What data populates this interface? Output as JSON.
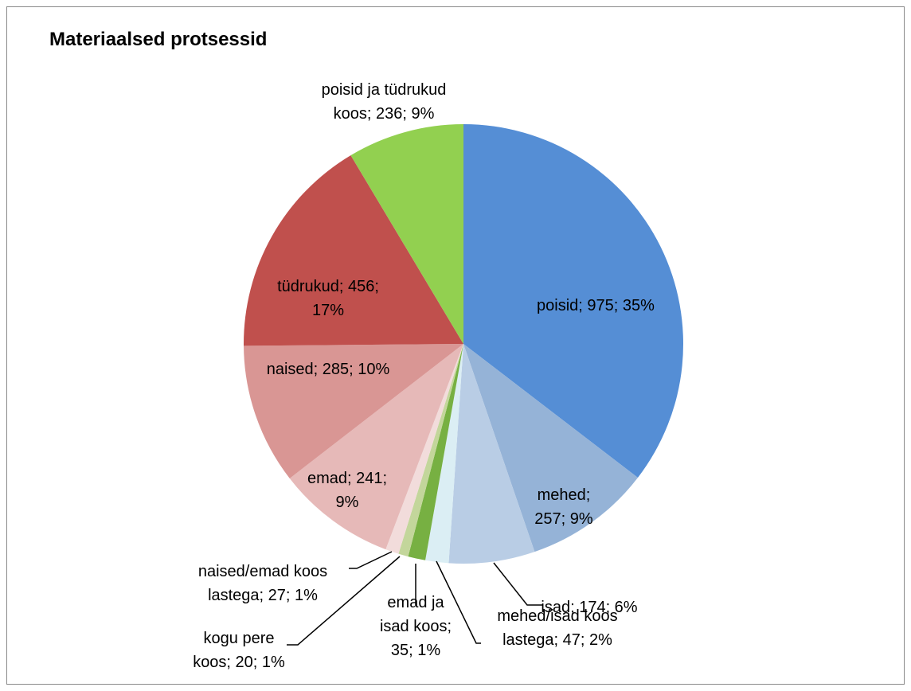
{
  "chart_data": {
    "type": "pie",
    "title": "Materiaalsed protsessid",
    "slices": [
      {
        "name": "poisid",
        "value": 975,
        "percent": 35,
        "color": "#558ed5",
        "label_lines": [
          "poisid; 975; 35%"
        ]
      },
      {
        "name": "mehed",
        "value": 257,
        "percent": 9,
        "color": "#95b3d7",
        "label_lines": [
          "mehed;",
          "257; 9%"
        ]
      },
      {
        "name": "isad",
        "value": 174,
        "percent": 6,
        "color": "#b9cde5",
        "label_lines": [
          "isad; 174; 6%"
        ]
      },
      {
        "name": "mehed/isad koos lastega",
        "value": 47,
        "percent": 2,
        "color": "#dbeef4",
        "label_lines": [
          "mehed/isad koos",
          "lastega; 47; 2%"
        ]
      },
      {
        "name": "emad ja isad koos",
        "value": 35,
        "percent": 1,
        "color": "#77b042",
        "label_lines": [
          "emad ja",
          "isad koos;",
          "35; 1%"
        ]
      },
      {
        "name": "kogu pere koos",
        "value": 20,
        "percent": 1,
        "color": "#c3d69b",
        "label_lines": [
          "kogu pere",
          "koos; 20; 1%"
        ]
      },
      {
        "name": "naised/emad koos lastega",
        "value": 27,
        "percent": 1,
        "color": "#f2dcdb",
        "label_lines": [
          "naised/emad koos",
          "lastega; 27; 1%"
        ]
      },
      {
        "name": "emad",
        "value": 241,
        "percent": 9,
        "color": "#e6b9b8",
        "label_lines": [
          "emad; 241;",
          "9%"
        ]
      },
      {
        "name": "naised",
        "value": 285,
        "percent": 10,
        "color": "#d99694",
        "label_lines": [
          "naised; 285; 10%"
        ]
      },
      {
        "name": "tüdrukud",
        "value": 456,
        "percent": 17,
        "color": "#c0504d",
        "label_lines": [
          "tüdrukud; 456;",
          "17%"
        ]
      },
      {
        "name": "poisid ja tüdrukud koos",
        "value": 236,
        "percent": 9,
        "color": "#92d050",
        "label_lines": [
          "poisid ja tüdrukud",
          "koos; 236; 9%"
        ]
      }
    ],
    "legend": "none"
  }
}
